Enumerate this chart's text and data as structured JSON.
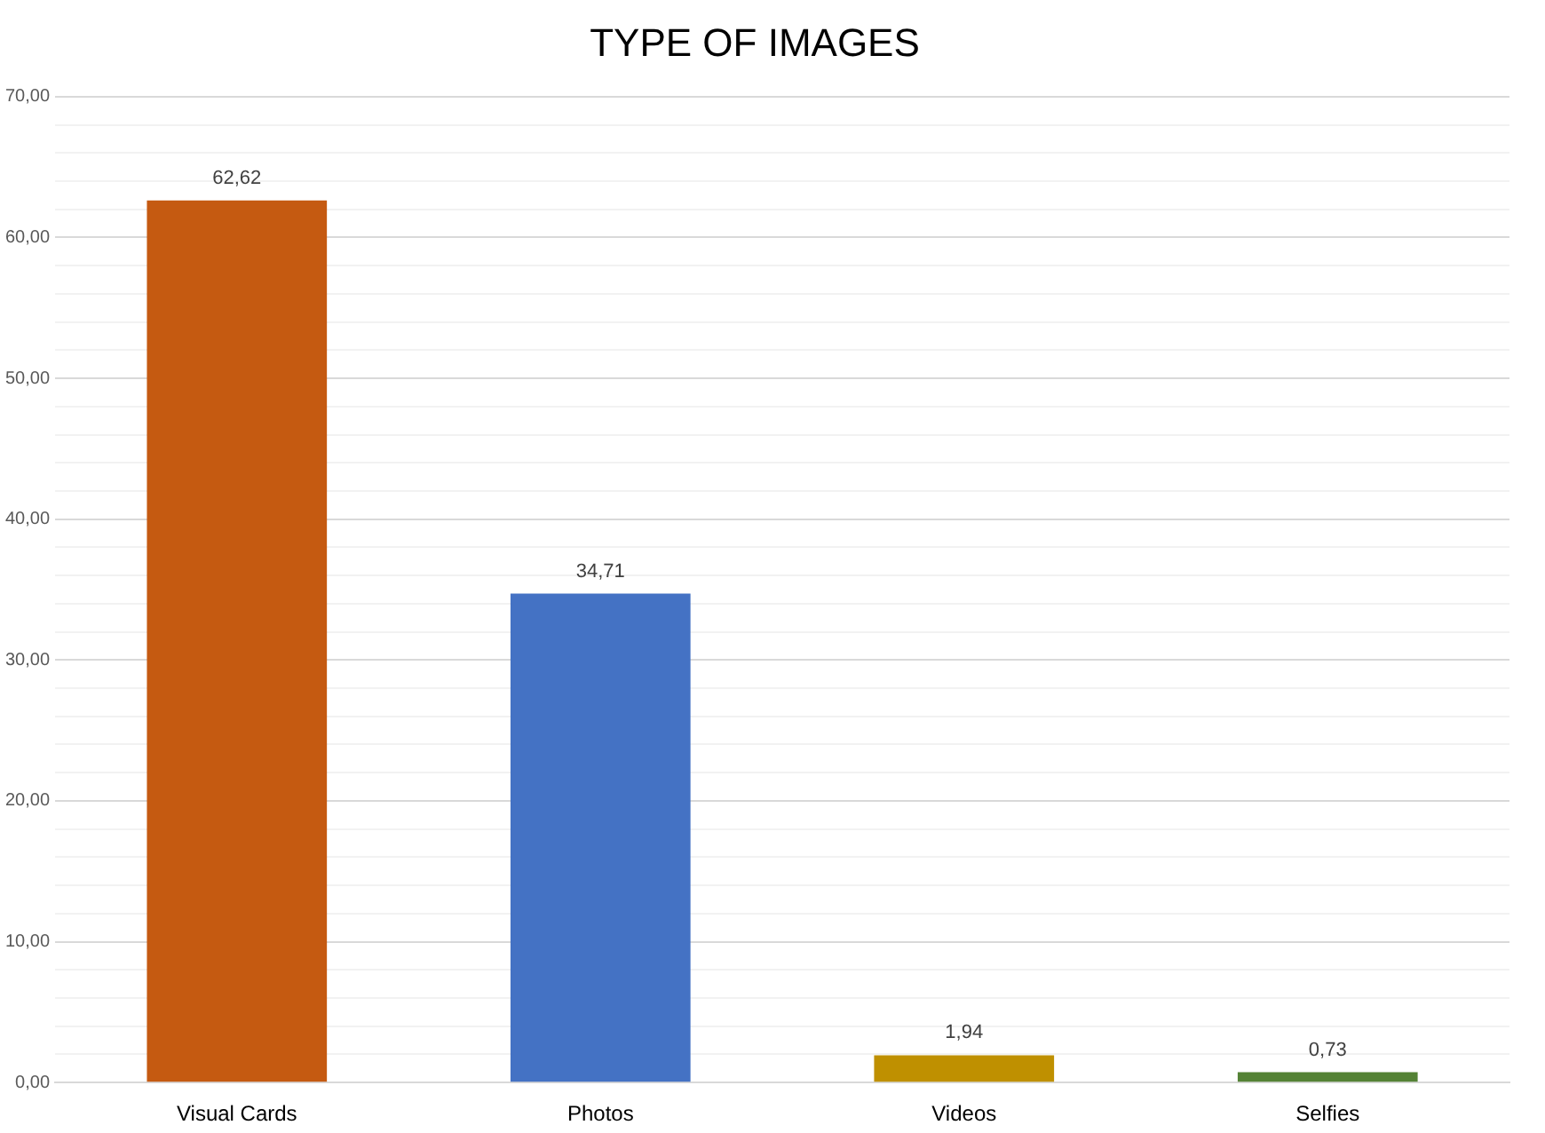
{
  "chart_data": {
    "type": "bar",
    "title": "TYPE OF IMAGES",
    "categories": [
      "Visual Cards",
      "Photos",
      "Videos",
      "Selfies"
    ],
    "values": [
      62.62,
      34.71,
      1.94,
      0.73
    ],
    "colors": [
      "#c55a11",
      "#4472c4",
      "#bf9000",
      "#548235"
    ],
    "value_labels": [
      "62,62",
      "34,71",
      "1,94",
      "0,73"
    ],
    "ylim": [
      0,
      70
    ],
    "yticks": [
      {
        "value": 0,
        "label": "0,00"
      },
      {
        "value": 2,
        "label": null
      },
      {
        "value": 4,
        "label": null
      },
      {
        "value": 6,
        "label": null
      },
      {
        "value": 8,
        "label": null
      },
      {
        "value": 10,
        "label": "10,00"
      },
      {
        "value": 12,
        "label": null
      },
      {
        "value": 14,
        "label": null
      },
      {
        "value": 16,
        "label": null
      },
      {
        "value": 18,
        "label": null
      },
      {
        "value": 20,
        "label": "20,00"
      },
      {
        "value": 22,
        "label": null
      },
      {
        "value": 24,
        "label": null
      },
      {
        "value": 26,
        "label": null
      },
      {
        "value": 28,
        "label": null
      },
      {
        "value": 30,
        "label": "30,00"
      },
      {
        "value": 32,
        "label": null
      },
      {
        "value": 34,
        "label": null
      },
      {
        "value": 36,
        "label": null
      },
      {
        "value": 38,
        "label": null
      },
      {
        "value": 40,
        "label": "40,00"
      },
      {
        "value": 42,
        "label": null
      },
      {
        "value": 44,
        "label": null
      },
      {
        "value": 46,
        "label": null
      },
      {
        "value": 48,
        "label": null
      },
      {
        "value": 50,
        "label": "50,00"
      },
      {
        "value": 52,
        "label": null
      },
      {
        "value": 54,
        "label": null
      },
      {
        "value": 56,
        "label": null
      },
      {
        "value": 58,
        "label": null
      },
      {
        "value": 60,
        "label": "60,00"
      },
      {
        "value": 62,
        "label": null
      },
      {
        "value": 64,
        "label": null
      },
      {
        "value": 66,
        "label": null
      },
      {
        "value": 68,
        "label": null
      },
      {
        "value": 70,
        "label": "70,00"
      }
    ],
    "grid": "y",
    "legend": false
  }
}
